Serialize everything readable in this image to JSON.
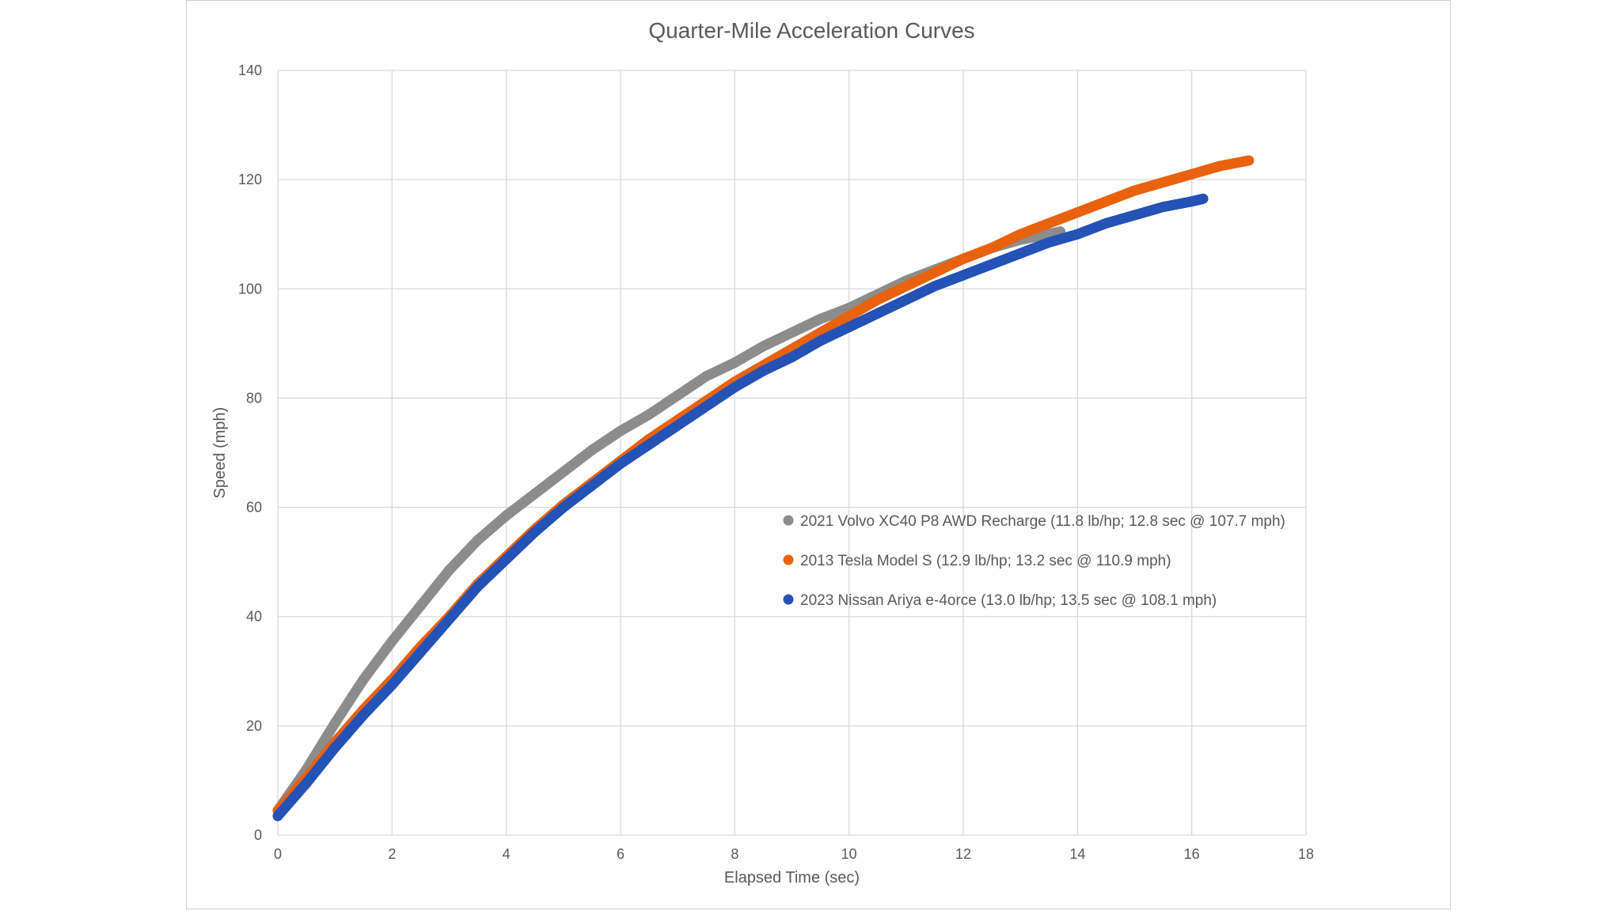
{
  "chart_data": {
    "type": "scatter",
    "title": "Quarter-Mile Acceleration Curves",
    "xlabel": "Elapsed Time (sec)",
    "ylabel": "Speed (mph)",
    "xlim": [
      0,
      18
    ],
    "ylim": [
      0,
      140
    ],
    "xticks": [
      "0",
      "2",
      "4",
      "6",
      "8",
      "10",
      "12",
      "14",
      "16",
      "18"
    ],
    "yticks": [
      "0",
      "20",
      "40",
      "60",
      "80",
      "100",
      "120",
      "140"
    ],
    "grid": true,
    "legend_position": "inside-center-right",
    "series": [
      {
        "name": "2021 Volvo XC40 P8 AWD Recharge (11.8 lb/hp; 12.8 sec @ 107.7 mph)",
        "color": "#8c8c8c",
        "x": [
          0,
          0.5,
          1,
          1.5,
          2,
          2.5,
          3,
          3.5,
          4,
          4.5,
          5,
          5.5,
          6,
          6.5,
          7,
          7.5,
          8,
          8.5,
          9,
          9.5,
          10,
          10.5,
          11,
          11.5,
          12,
          12.5,
          13,
          13.5,
          13.7
        ],
        "y": [
          4.5,
          12,
          20.5,
          28.5,
          35.5,
          42,
          48.5,
          54,
          58.5,
          62.5,
          66.5,
          70.5,
          74,
          77,
          80.5,
          84,
          86.5,
          89.5,
          92,
          94.5,
          96.5,
          99,
          101.5,
          103.5,
          105.5,
          107.5,
          109,
          110,
          110.5
        ]
      },
      {
        "name": "2013 Tesla Model S (12.9 lb/hp; 13.2 sec @ 110.9 mph)",
        "color": "#e8620f",
        "x": [
          0,
          0.5,
          1,
          1.5,
          2,
          2.5,
          3,
          3.5,
          4,
          4.5,
          5,
          5.5,
          6,
          6.5,
          7,
          7.5,
          8,
          8.5,
          9,
          9.5,
          10,
          10.5,
          11,
          11.5,
          12,
          12.5,
          13,
          13.5,
          14,
          14.5,
          15,
          15.5,
          16,
          16.5,
          17
        ],
        "y": [
          4.5,
          10.5,
          17,
          23,
          28.5,
          34.5,
          40,
          46,
          51,
          56,
          60.5,
          64.5,
          68.5,
          72.5,
          76,
          79.5,
          83,
          86,
          89,
          92,
          95,
          98,
          100.5,
          103,
          105.5,
          107.5,
          110,
          112,
          114,
          116,
          118,
          119.5,
          121,
          122.5,
          123.5
        ]
      },
      {
        "name": "2023 Nissan Ariya e-4orce (13.0 lb/hp; 13.5 sec @ 108.1 mph)",
        "color": "#2552b5",
        "x": [
          0,
          0.5,
          1,
          1.5,
          2,
          2.5,
          3,
          3.5,
          4,
          4.5,
          5,
          5.5,
          6,
          6.5,
          7,
          7.5,
          8,
          8.5,
          9,
          9.5,
          10,
          10.5,
          11,
          11.5,
          12,
          12.5,
          13,
          13.5,
          14,
          14.5,
          15,
          15.5,
          16,
          16.2
        ],
        "y": [
          3.5,
          9.5,
          16,
          22,
          27.5,
          33.5,
          39.5,
          45.5,
          50.5,
          55.5,
          60,
          64,
          68,
          71.5,
          75,
          78.5,
          82,
          85,
          87.5,
          90.5,
          93,
          95.5,
          98,
          100.5,
          102.5,
          104.5,
          106.5,
          108.5,
          110,
          112,
          113.5,
          115,
          116,
          116.5
        ]
      }
    ]
  }
}
